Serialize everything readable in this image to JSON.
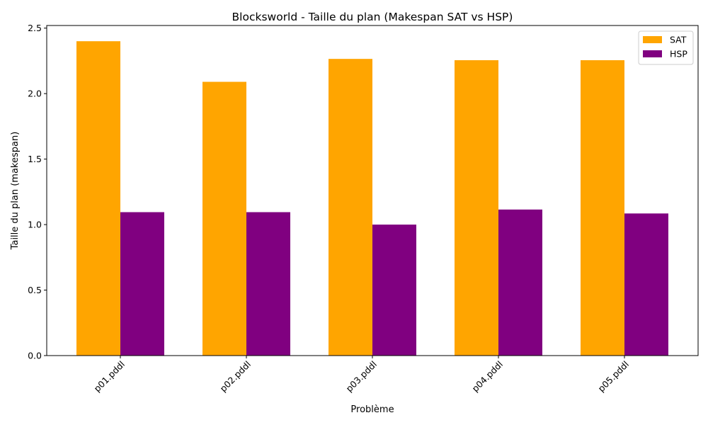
{
  "chart_data": {
    "type": "bar",
    "title": "Blocksworld - Taille du plan (Makespan SAT vs HSP)",
    "xlabel": "Problème",
    "ylabel": "Taille du plan (makespan)",
    "categories": [
      "p01.pddl",
      "p02.pddl",
      "p03.pddl",
      "p04.pddl",
      "p05.pddl"
    ],
    "series": [
      {
        "name": "SAT",
        "color": "#FFA500",
        "values": [
          2.4,
          2.09,
          2.265,
          2.255,
          2.255
        ]
      },
      {
        "name": "HSP",
        "color": "#800080",
        "values": [
          1.095,
          1.095,
          1.0,
          1.115,
          1.085
        ]
      }
    ],
    "ylim": [
      0,
      2.52
    ],
    "yticks": [
      "0.0",
      "0.5",
      "1.0",
      "1.5",
      "2.0",
      "2.5"
    ],
    "grid": false,
    "legend_position": "top-right",
    "x_tick_rotation_deg": 45
  }
}
